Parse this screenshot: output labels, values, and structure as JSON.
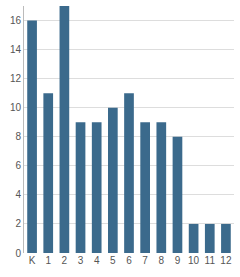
{
  "chart_data": {
    "type": "bar",
    "categories": [
      "K",
      "1",
      "2",
      "3",
      "4",
      "5",
      "6",
      "7",
      "8",
      "9",
      "10",
      "11",
      "12"
    ],
    "values": [
      16,
      11,
      17,
      9,
      9,
      10,
      11,
      9,
      9,
      8,
      2,
      2,
      2
    ],
    "color": "#3b6a8c",
    "ylim": [
      0,
      17
    ],
    "yticks": [
      0,
      2,
      4,
      6,
      8,
      10,
      12,
      14,
      16
    ],
    "grid": true
  }
}
